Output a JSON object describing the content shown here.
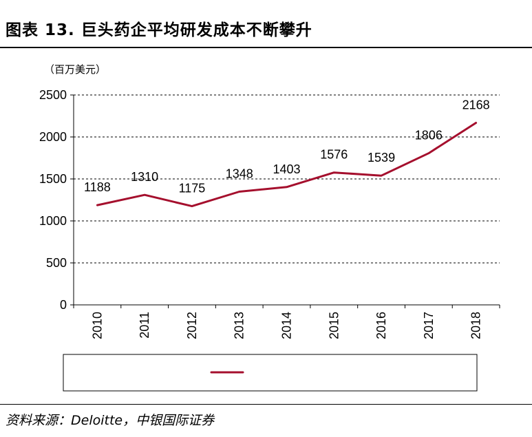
{
  "figure": {
    "title": "图表 13. 巨头药企平均研发成本不断攀升",
    "unit": "（百万美元）",
    "source": "资料来源：Deloitte，中银国际证券"
  },
  "chart_data": {
    "type": "line",
    "title": "",
    "xlabel": "",
    "ylabel": "（百万美元）",
    "x": [
      "2010",
      "2011",
      "2012",
      "2013",
      "2014",
      "2015",
      "2016",
      "2017",
      "2018"
    ],
    "series": [
      {
        "values": [
          1188,
          1310,
          1175,
          1348,
          1403,
          1576,
          1539,
          1806,
          2168
        ],
        "color": "#a50f2d"
      }
    ],
    "ylim": [
      0,
      2500
    ],
    "yticks": [
      0,
      500,
      1000,
      1500,
      2000,
      2500
    ],
    "grid": true,
    "legend": "bottom"
  }
}
